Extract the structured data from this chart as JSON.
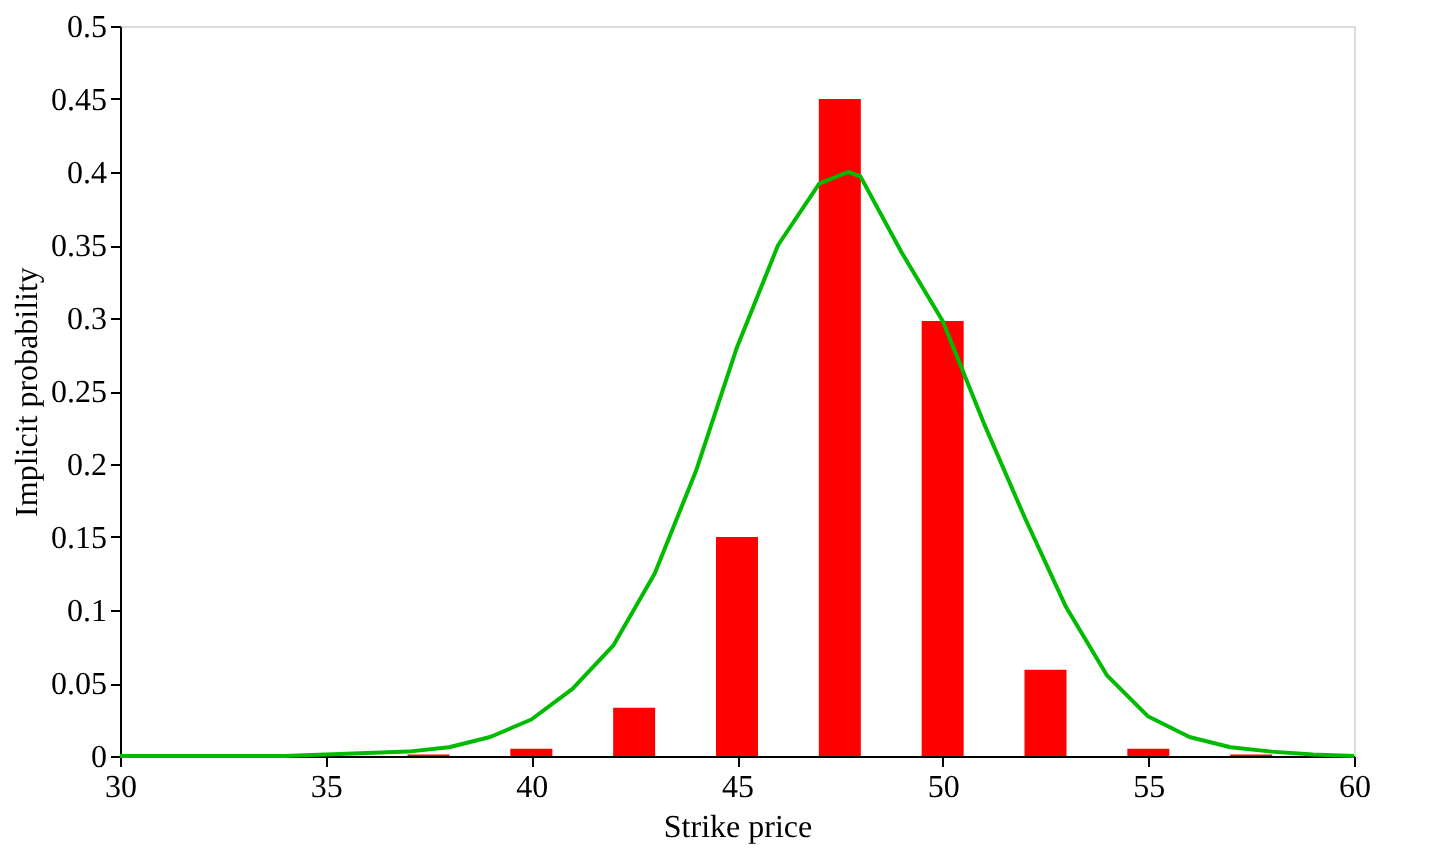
{
  "chart_data": {
    "type": "bar",
    "xlabel": "Strike price",
    "ylabel": "Implicit probability",
    "x": [
      37.5,
      40,
      42.5,
      45,
      47.5,
      50,
      52.5,
      55,
      57.5
    ],
    "series": [
      {
        "color": "#ff0000",
        "values": [
          0.001,
          0.005,
          0.033,
          0.15,
          0.45,
          0.298,
          0.059,
          0.005,
          0.001
        ]
      },
      {
        "type": "line",
        "color": "#00bb00",
        "x": [
          30,
          32,
          34,
          36,
          37,
          38,
          39,
          40,
          41,
          42,
          43,
          44,
          45,
          46,
          47,
          47.7,
          48,
          49,
          50,
          51,
          52,
          53,
          54,
          55,
          56,
          57,
          58,
          59,
          60
        ],
        "values": [
          0,
          0,
          0,
          0.002,
          0.003,
          0.006,
          0.013,
          0.025,
          0.046,
          0.076,
          0.125,
          0.195,
          0.28,
          0.35,
          0.392,
          0.4,
          0.397,
          0.345,
          0.298,
          0.228,
          0.163,
          0.102,
          0.055,
          0.027,
          0.013,
          0.006,
          0.003,
          0.001,
          0
        ]
      }
    ],
    "xlim": [
      30,
      60
    ],
    "xticks": [
      30,
      35,
      40,
      45,
      50,
      55,
      60
    ],
    "ylim": [
      0,
      0.5
    ],
    "yticks": [
      0,
      0.05,
      0.1,
      0.15,
      0.2,
      0.25,
      0.3,
      0.35,
      0.4,
      0.45,
      0.5
    ],
    "grid": false,
    "marker": "none",
    "line_style": "solid"
  }
}
